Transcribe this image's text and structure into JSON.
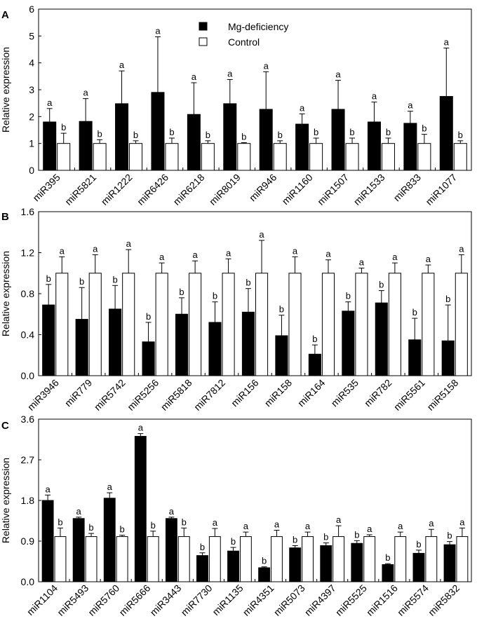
{
  "legend": {
    "mg_label": "Mg-deficiency",
    "control_label": "Control"
  },
  "colors": {
    "mg": "#000000",
    "control": "#ffffff",
    "stroke": "#000000"
  },
  "chart_data": [
    {
      "type": "bar",
      "panel": "A",
      "ylabel": "Relative expression",
      "ylim": [
        0,
        6
      ],
      "yticks": [
        "0",
        "1",
        "2",
        "3",
        "4",
        "5",
        "6"
      ],
      "categories": [
        "miR395",
        "miR5821",
        "miR1222",
        "miR6426",
        "miR6218",
        "miR8019",
        "miR946",
        "miR1160",
        "miR1507",
        "miR1533",
        "miR833",
        "miR1077"
      ],
      "series": [
        {
          "name": "Mg-deficiency",
          "values": [
            1.8,
            1.82,
            2.48,
            2.9,
            2.08,
            2.48,
            2.27,
            1.72,
            2.27,
            1.8,
            1.75,
            2.75
          ],
          "errors": [
            0.5,
            0.85,
            1.22,
            2.07,
            1.18,
            0.9,
            1.4,
            0.38,
            1.08,
            0.74,
            0.45,
            1.8
          ],
          "labels": [
            "a",
            "a",
            "a",
            "a",
            "a",
            "a",
            "a",
            "a",
            "a",
            "a",
            "a",
            "a"
          ]
        },
        {
          "name": "Control",
          "values": [
            1.0,
            1.0,
            1.0,
            1.0,
            1.0,
            1.0,
            1.0,
            1.0,
            1.0,
            1.0,
            1.0,
            1.0
          ],
          "errors": [
            0.38,
            0.14,
            0.1,
            0.2,
            0.1,
            0.03,
            0.1,
            0.2,
            0.2,
            0.2,
            0.34,
            0.1
          ],
          "labels": [
            "b",
            "b",
            "b",
            "b",
            "b",
            "b",
            "b",
            "b",
            "b",
            "b",
            "b",
            "b"
          ]
        }
      ]
    },
    {
      "type": "bar",
      "panel": "B",
      "ylabel": "Relative expression",
      "ylim": [
        0,
        1.6
      ],
      "yticks": [
        "0.0",
        "0.4",
        "0.8",
        "1.2",
        "1.6"
      ],
      "categories": [
        "miR3946",
        "miR779",
        "miR5742",
        "miR5256",
        "miR5818",
        "miR7812",
        "miR156",
        "miR158",
        "miR164",
        "miR535",
        "miR782",
        "miR5561",
        "miR5158"
      ],
      "series": [
        {
          "name": "Mg-deficiency",
          "values": [
            0.69,
            0.55,
            0.65,
            0.33,
            0.6,
            0.52,
            0.62,
            0.39,
            0.21,
            0.63,
            0.71,
            0.35,
            0.34
          ],
          "errors": [
            0.2,
            0.31,
            0.23,
            0.19,
            0.16,
            0.2,
            0.23,
            0.2,
            0.09,
            0.09,
            0.12,
            0.21,
            0.35
          ],
          "labels": [
            "b",
            "b",
            "b",
            "b",
            "b",
            "b",
            "b",
            "b",
            "b",
            "b",
            "b",
            "b",
            "b"
          ]
        },
        {
          "name": "Control",
          "values": [
            1.0,
            1.0,
            1.0,
            1.0,
            1.0,
            1.0,
            1.0,
            1.0,
            1.0,
            1.0,
            1.0,
            1.0,
            1.0
          ],
          "errors": [
            0.16,
            0.18,
            0.23,
            0.1,
            0.12,
            0.14,
            0.32,
            0.16,
            0.13,
            0.05,
            0.1,
            0.08,
            0.18
          ],
          "labels": [
            "a",
            "a",
            "a",
            "a",
            "a",
            "a",
            "a",
            "a",
            "a",
            "a",
            "a",
            "a",
            "a"
          ]
        }
      ]
    },
    {
      "type": "bar",
      "panel": "C",
      "ylabel": "Relative expression",
      "ylim": [
        0,
        3.6
      ],
      "yticks": [
        "0.0",
        "0.9",
        "1.8",
        "2.7",
        "3.6"
      ],
      "categories": [
        "miR1104",
        "miR5493",
        "miR5760",
        "miR5666",
        "miR3443",
        "miR7730",
        "miR1135",
        "miR4351",
        "miR5073",
        "miR4397",
        "miR5525",
        "miR1516",
        "miR5574",
        "miR5832"
      ],
      "series": [
        {
          "name": "Mg-deficiency",
          "values": [
            1.8,
            1.4,
            1.85,
            3.22,
            1.4,
            0.58,
            0.68,
            0.31,
            0.75,
            0.8,
            0.85,
            0.38,
            0.63,
            0.82
          ],
          "errors": [
            0.12,
            0.03,
            0.12,
            0.06,
            0.03,
            0.06,
            0.08,
            0.02,
            0.05,
            0.06,
            0.06,
            0.02,
            0.07,
            0.07
          ],
          "labels": [
            "a",
            "a",
            "a",
            "a",
            "a",
            "b",
            "b",
            "b",
            "b",
            "b",
            "b",
            "b",
            "b",
            "b"
          ]
        },
        {
          "name": "Control",
          "values": [
            1.0,
            1.0,
            1.0,
            1.0,
            1.0,
            1.0,
            1.0,
            1.0,
            1.0,
            1.0,
            1.0,
            1.0,
            1.0,
            1.0
          ],
          "errors": [
            0.19,
            0.07,
            0.03,
            0.12,
            0.19,
            0.18,
            0.1,
            0.14,
            0.1,
            0.24,
            0.04,
            0.1,
            0.16,
            0.19
          ],
          "labels": [
            "b",
            "b",
            "b",
            "b",
            "b",
            "a",
            "a",
            "a",
            "a",
            "a",
            "a",
            "a",
            "a",
            "a"
          ]
        }
      ]
    }
  ]
}
